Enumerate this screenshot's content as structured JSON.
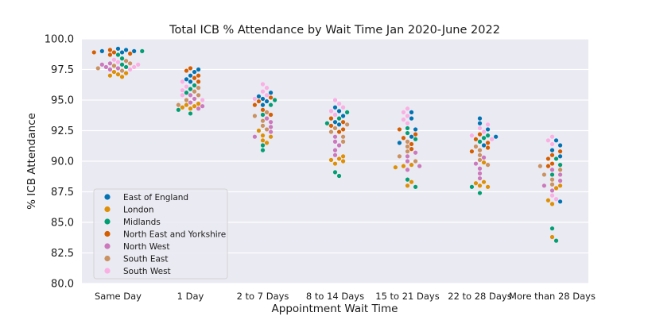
{
  "chart_data": {
    "type": "scatter",
    "subtype": "swarm",
    "title": "Total ICB % Attendance by Wait Time Jan 2020-June 2022",
    "xlabel": "Appointment Wait Time",
    "ylabel": "% ICB Attendance",
    "ylim": [
      80.0,
      100.0
    ],
    "yticks": [
      "80.0",
      "82.5",
      "85.0",
      "87.5",
      "90.0",
      "92.5",
      "95.0",
      "97.5",
      "100.0"
    ],
    "ytick_values": [
      80.0,
      82.5,
      85.0,
      87.5,
      90.0,
      92.5,
      95.0,
      97.5,
      100.0
    ],
    "grid": true,
    "legend_position": "lower-left",
    "categories": [
      "Same Day",
      "1 Day",
      "2 to 7 Days",
      "8  to 14 Days",
      "15  to 21 Days",
      "22  to 28 Days",
      "More than 28 Days"
    ],
    "series": [
      {
        "name": "East of England",
        "color": "#0173b2",
        "values": [
          [
            99.0,
            99.1,
            99.0,
            98.9,
            99.2
          ],
          [
            97.5,
            97.3,
            97.0,
            96.7,
            96.5
          ],
          [
            95.6,
            95.3,
            95.1,
            94.9,
            94.6
          ],
          [
            94.4,
            94.1,
            93.7,
            93.2,
            93.0
          ],
          [
            94.0,
            93.5,
            92.6,
            92.0,
            91.5
          ],
          [
            93.5,
            93.1,
            92.6,
            92.0,
            91.3
          ],
          [
            91.7,
            91.3,
            90.9,
            90.4,
            86.7
          ]
        ]
      },
      {
        "name": "London",
        "color": "#de8f05",
        "values": [
          [
            97.1,
            97.3,
            97.0,
            96.9,
            97.2
          ],
          [
            94.6,
            94.4,
            94.7,
            94.5,
            94.3
          ],
          [
            92.5,
            92.1,
            91.7,
            91.5,
            92.0
          ],
          [
            90.4,
            90.1,
            89.8,
            90.2,
            90.0
          ],
          [
            89.7,
            89.5,
            89.6,
            88.3,
            88.0
          ],
          [
            88.3,
            88.0,
            88.2,
            89.9,
            87.9
          ],
          [
            88.0,
            87.8,
            86.5,
            86.8,
            83.8
          ]
        ]
      },
      {
        "name": "Midlands",
        "color": "#029e73",
        "values": [
          [
            99.0,
            98.7,
            98.4,
            97.9,
            97.7
          ],
          [
            96.2,
            95.9,
            95.6,
            94.2,
            93.9
          ],
          [
            95.0,
            94.6,
            93.8,
            91.3,
            90.9
          ],
          [
            94.0,
            93.5,
            93.1,
            89.1,
            88.8
          ],
          [
            92.7,
            92.3,
            91.8,
            88.5,
            87.9
          ],
          [
            92.1,
            91.9,
            91.6,
            87.9,
            87.4
          ],
          [
            90.2,
            89.7,
            88.9,
            84.5,
            83.5
          ]
        ]
      },
      {
        "name": "North East and Yorkshire",
        "color": "#d55e00",
        "values": [
          [
            99.1,
            98.9,
            98.8,
            98.7,
            98.9
          ],
          [
            97.6,
            97.4,
            97.0,
            96.5,
            96.8
          ],
          [
            95.2,
            94.9,
            94.6,
            94.2,
            93.8
          ],
          [
            93.5,
            93.2,
            92.9,
            92.6,
            92.4
          ],
          [
            92.6,
            92.2,
            91.9,
            91.4,
            91.0
          ],
          [
            92.2,
            91.8,
            91.5,
            91.1,
            90.8
          ],
          [
            90.8,
            90.5,
            90.2,
            89.8,
            89.6
          ]
        ]
      },
      {
        "name": "North West",
        "color": "#cc78bc",
        "values": [
          [
            98.0,
            97.9,
            97.7,
            97.6,
            97.5
          ],
          [
            95.4,
            95.1,
            94.8,
            94.5,
            94.3
          ],
          [
            93.5,
            93.2,
            92.8,
            92.4,
            92.0
          ],
          [
            92.0,
            91.6,
            91.3,
            90.9,
            90.5
          ],
          [
            90.7,
            90.4,
            90.0,
            89.6,
            89.3
          ],
          [
            90.3,
            89.8,
            89.4,
            89.0,
            88.6
          ],
          [
            89.3,
            88.9,
            88.4,
            88.0,
            87.6
          ]
        ]
      },
      {
        "name": "South East",
        "color": "#ca9161",
        "values": [
          [
            98.2,
            98.0,
            97.8,
            97.6,
            97.4
          ],
          [
            96.0,
            95.7,
            95.4,
            95.0,
            94.6
          ],
          [
            94.0,
            93.7,
            93.3,
            92.9,
            92.6
          ],
          [
            93.0,
            92.7,
            92.4,
            92.0,
            91.6
          ],
          [
            91.6,
            91.2,
            90.8,
            90.4,
            90.0
          ],
          [
            91.2,
            90.9,
            90.5,
            90.1,
            89.7
          ],
          [
            89.6,
            89.3,
            88.9,
            88.5,
            88.1
          ]
        ]
      },
      {
        "name": "South West",
        "color": "#fbafe4",
        "values": [
          [
            98.3,
            98.1,
            97.9,
            97.7,
            97.5
          ],
          [
            96.5,
            96.1,
            95.8,
            95.4,
            95.0
          ],
          [
            96.3,
            96.0,
            95.7,
            95.4,
            95.1
          ],
          [
            95.0,
            94.7,
            94.4,
            94.1,
            93.8
          ],
          [
            94.3,
            94.0,
            93.7,
            93.4,
            93.1
          ],
          [
            93.0,
            92.7,
            92.4,
            92.1,
            91.8
          ],
          [
            92.0,
            91.7,
            91.4,
            87.2,
            86.9
          ]
        ]
      }
    ]
  }
}
